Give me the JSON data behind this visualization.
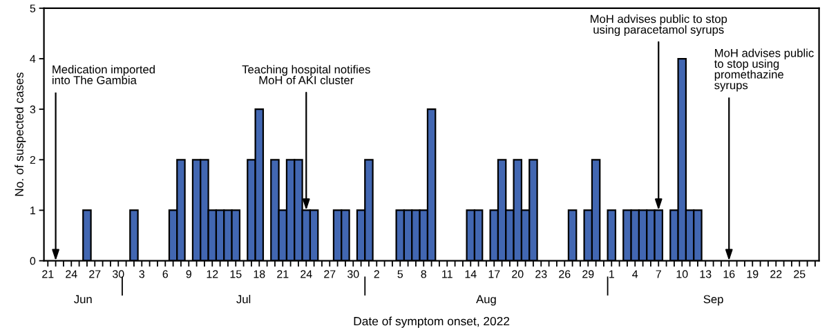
{
  "chart_data": {
    "type": "bar",
    "xlabel": "Date of symptom onset, 2022",
    "ylabel": "No. of suspected cases",
    "color": "#4267b2",
    "grid": false,
    "x": [
      "2022-06-26",
      "2022-07-02",
      "2022-07-07",
      "2022-07-08",
      "2022-07-10",
      "2022-07-11",
      "2022-07-12",
      "2022-07-13",
      "2022-07-14",
      "2022-07-15",
      "2022-07-17",
      "2022-07-18",
      "2022-07-20",
      "2022-07-21",
      "2022-07-22",
      "2022-07-23",
      "2022-07-24",
      "2022-07-25",
      "2022-07-28",
      "2022-07-29",
      "2022-07-31",
      "2022-08-01",
      "2022-08-05",
      "2022-08-06",
      "2022-08-07",
      "2022-08-08",
      "2022-08-09",
      "2022-08-14",
      "2022-08-15",
      "2022-08-17",
      "2022-08-18",
      "2022-08-19",
      "2022-08-20",
      "2022-08-21",
      "2022-08-22",
      "2022-08-27",
      "2022-08-29",
      "2022-08-30",
      "2022-09-01",
      "2022-09-03",
      "2022-09-04",
      "2022-09-05",
      "2022-09-06",
      "2022-09-07",
      "2022-09-09",
      "2022-09-10",
      "2022-09-11",
      "2022-09-12"
    ],
    "values": [
      1,
      1,
      1,
      2,
      2,
      2,
      1,
      1,
      1,
      1,
      2,
      3,
      2,
      1,
      2,
      2,
      1,
      1,
      1,
      1,
      1,
      2,
      1,
      1,
      1,
      1,
      3,
      1,
      1,
      1,
      2,
      1,
      2,
      1,
      2,
      1,
      1,
      2,
      1,
      1,
      1,
      1,
      1,
      1,
      1,
      4,
      1,
      1
    ],
    "ylim": [
      0,
      5
    ],
    "yticks": [
      0,
      1,
      2,
      3,
      4,
      5
    ],
    "xlim": [
      "2022-06-20T12:00",
      "2022-09-27T12:00"
    ],
    "xticks": [
      {
        "value": "2022-06-21",
        "label": "21"
      },
      {
        "value": "2022-06-22",
        "label": null
      },
      {
        "value": "2022-06-23",
        "label": null
      },
      {
        "value": "2022-06-24",
        "label": "24"
      },
      {
        "value": "2022-06-25",
        "label": null
      },
      {
        "value": "2022-06-26",
        "label": null
      },
      {
        "value": "2022-06-27",
        "label": "27"
      },
      {
        "value": "2022-06-28",
        "label": null
      },
      {
        "value": "2022-06-29",
        "label": null
      },
      {
        "value": "2022-06-30",
        "label": "30"
      },
      {
        "value": "2022-07-01",
        "label": null
      },
      {
        "value": "2022-07-02",
        "label": null
      },
      {
        "value": "2022-07-03",
        "label": "3"
      },
      {
        "value": "2022-07-04",
        "label": null
      },
      {
        "value": "2022-07-05",
        "label": null
      },
      {
        "value": "2022-07-06",
        "label": "6"
      },
      {
        "value": "2022-07-07",
        "label": null
      },
      {
        "value": "2022-07-08",
        "label": null
      },
      {
        "value": "2022-07-09",
        "label": "9"
      },
      {
        "value": "2022-07-10",
        "label": null
      },
      {
        "value": "2022-07-11",
        "label": null
      },
      {
        "value": "2022-07-12",
        "label": "12"
      },
      {
        "value": "2022-07-13",
        "label": null
      },
      {
        "value": "2022-07-14",
        "label": null
      },
      {
        "value": "2022-07-15",
        "label": "15"
      },
      {
        "value": "2022-07-16",
        "label": null
      },
      {
        "value": "2022-07-17",
        "label": null
      },
      {
        "value": "2022-07-18",
        "label": "18"
      },
      {
        "value": "2022-07-19",
        "label": null
      },
      {
        "value": "2022-07-20",
        "label": null
      },
      {
        "value": "2022-07-21",
        "label": "21"
      },
      {
        "value": "2022-07-22",
        "label": null
      },
      {
        "value": "2022-07-23",
        "label": null
      },
      {
        "value": "2022-07-24",
        "label": "24"
      },
      {
        "value": "2022-07-25",
        "label": null
      },
      {
        "value": "2022-07-26",
        "label": null
      },
      {
        "value": "2022-07-27",
        "label": "27"
      },
      {
        "value": "2022-07-28",
        "label": null
      },
      {
        "value": "2022-07-29",
        "label": null
      },
      {
        "value": "2022-07-30",
        "label": "30"
      },
      {
        "value": "2022-07-31",
        "label": null
      },
      {
        "value": "2022-08-01",
        "label": null
      },
      {
        "value": "2022-08-02",
        "label": "2"
      },
      {
        "value": "2022-08-03",
        "label": null
      },
      {
        "value": "2022-08-04",
        "label": null
      },
      {
        "value": "2022-08-05",
        "label": "5"
      },
      {
        "value": "2022-08-06",
        "label": null
      },
      {
        "value": "2022-08-07",
        "label": null
      },
      {
        "value": "2022-08-08",
        "label": "8"
      },
      {
        "value": "2022-08-09",
        "label": null
      },
      {
        "value": "2022-08-10",
        "label": null
      },
      {
        "value": "2022-08-11",
        "label": "11"
      },
      {
        "value": "2022-08-12",
        "label": null
      },
      {
        "value": "2022-08-13",
        "label": null
      },
      {
        "value": "2022-08-14",
        "label": "14"
      },
      {
        "value": "2022-08-15",
        "label": null
      },
      {
        "value": "2022-08-16",
        "label": null
      },
      {
        "value": "2022-08-17",
        "label": "17"
      },
      {
        "value": "2022-08-18",
        "label": null
      },
      {
        "value": "2022-08-19",
        "label": null
      },
      {
        "value": "2022-08-20",
        "label": "20"
      },
      {
        "value": "2022-08-21",
        "label": null
      },
      {
        "value": "2022-08-22",
        "label": null
      },
      {
        "value": "2022-08-23",
        "label": "23"
      },
      {
        "value": "2022-08-24",
        "label": null
      },
      {
        "value": "2022-08-25",
        "label": null
      },
      {
        "value": "2022-08-26",
        "label": "26"
      },
      {
        "value": "2022-08-27",
        "label": null
      },
      {
        "value": "2022-08-28",
        "label": null
      },
      {
        "value": "2022-08-29",
        "label": "29"
      },
      {
        "value": "2022-08-30",
        "label": null
      },
      {
        "value": "2022-08-31",
        "label": null
      },
      {
        "value": "2022-09-01",
        "label": "1"
      },
      {
        "value": "2022-09-02",
        "label": null
      },
      {
        "value": "2022-09-03",
        "label": null
      },
      {
        "value": "2022-09-04",
        "label": "4"
      },
      {
        "value": "2022-09-05",
        "label": null
      },
      {
        "value": "2022-09-06",
        "label": null
      },
      {
        "value": "2022-09-07",
        "label": "7"
      },
      {
        "value": "2022-09-08",
        "label": null
      },
      {
        "value": "2022-09-09",
        "label": null
      },
      {
        "value": "2022-09-10",
        "label": "10"
      },
      {
        "value": "2022-09-11",
        "label": null
      },
      {
        "value": "2022-09-12",
        "label": null
      },
      {
        "value": "2022-09-13",
        "label": "13"
      },
      {
        "value": "2022-09-14",
        "label": null
      },
      {
        "value": "2022-09-15",
        "label": null
      },
      {
        "value": "2022-09-16",
        "label": "16"
      },
      {
        "value": "2022-09-17",
        "label": null
      },
      {
        "value": "2022-09-18",
        "label": null
      },
      {
        "value": "2022-09-19",
        "label": "19"
      },
      {
        "value": "2022-09-20",
        "label": null
      },
      {
        "value": "2022-09-21",
        "label": null
      },
      {
        "value": "2022-09-22",
        "label": "22"
      },
      {
        "value": "2022-09-23",
        "label": null
      },
      {
        "value": "2022-09-24",
        "label": null
      },
      {
        "value": "2022-09-25",
        "label": "25"
      },
      {
        "value": "2022-09-26",
        "label": null
      },
      {
        "value": "2022-09-27",
        "label": null
      }
    ],
    "ref_lines": [
      {
        "axis": "x",
        "value": "2022-06-22",
        "label": "Medication imported\ninto The Gambia"
      },
      {
        "axis": "x",
        "value": "2022-09-16",
        "label": "MoH advises public\nto stop using\npromethazine\nsyrups"
      }
    ],
    "annotations": [
      {
        "text": "Teaching hospital notifies\nMoH of AKI cluster",
        "x": "2022-07-24",
        "y": 1
      },
      {
        "text": "MoH advises public to stop\nusing paracetamol syrups",
        "x": "2022-09-07",
        "y": 1
      },
      "Jun",
      "Jul",
      "Aug",
      "Sep"
    ]
  }
}
